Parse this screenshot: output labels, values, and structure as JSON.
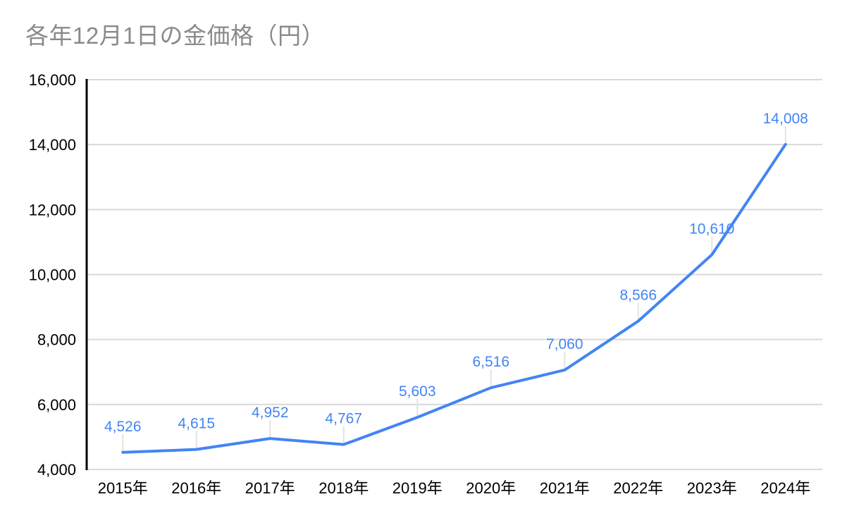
{
  "header": {
    "title": "各年12月1日の金価格（円）"
  },
  "chart_data": {
    "type": "line",
    "title": "各年12月1日の金価格（円）",
    "categories": [
      "2015年",
      "2016年",
      "2017年",
      "2018年",
      "2019年",
      "2020年",
      "2021年",
      "2022年",
      "2023年",
      "2024年"
    ],
    "values": [
      4526,
      4615,
      4952,
      4767,
      5603,
      6516,
      7060,
      8566,
      10610,
      14008
    ],
    "data_labels": [
      "4,526",
      "4,615",
      "4,952",
      "4,767",
      "5,603",
      "6,516",
      "7,060",
      "8,566",
      "10,610",
      "14,008"
    ],
    "xlabel": "",
    "ylabel": "",
    "ylim": [
      4000,
      16000
    ],
    "ytick_step": 2000,
    "ytick_labels": [
      "4,000",
      "6,000",
      "8,000",
      "10,000",
      "12,000",
      "14,000",
      "16,000"
    ],
    "grid": true,
    "legend": "none"
  },
  "colors": {
    "line": "#4285f4",
    "data_label": "#4285f4",
    "grid": "#d9d9d9",
    "callout": "#e3e3e3",
    "axis_line": "#000000",
    "axis_label": "#000000",
    "title": "#8a8a8a",
    "background": "#ffffff"
  }
}
